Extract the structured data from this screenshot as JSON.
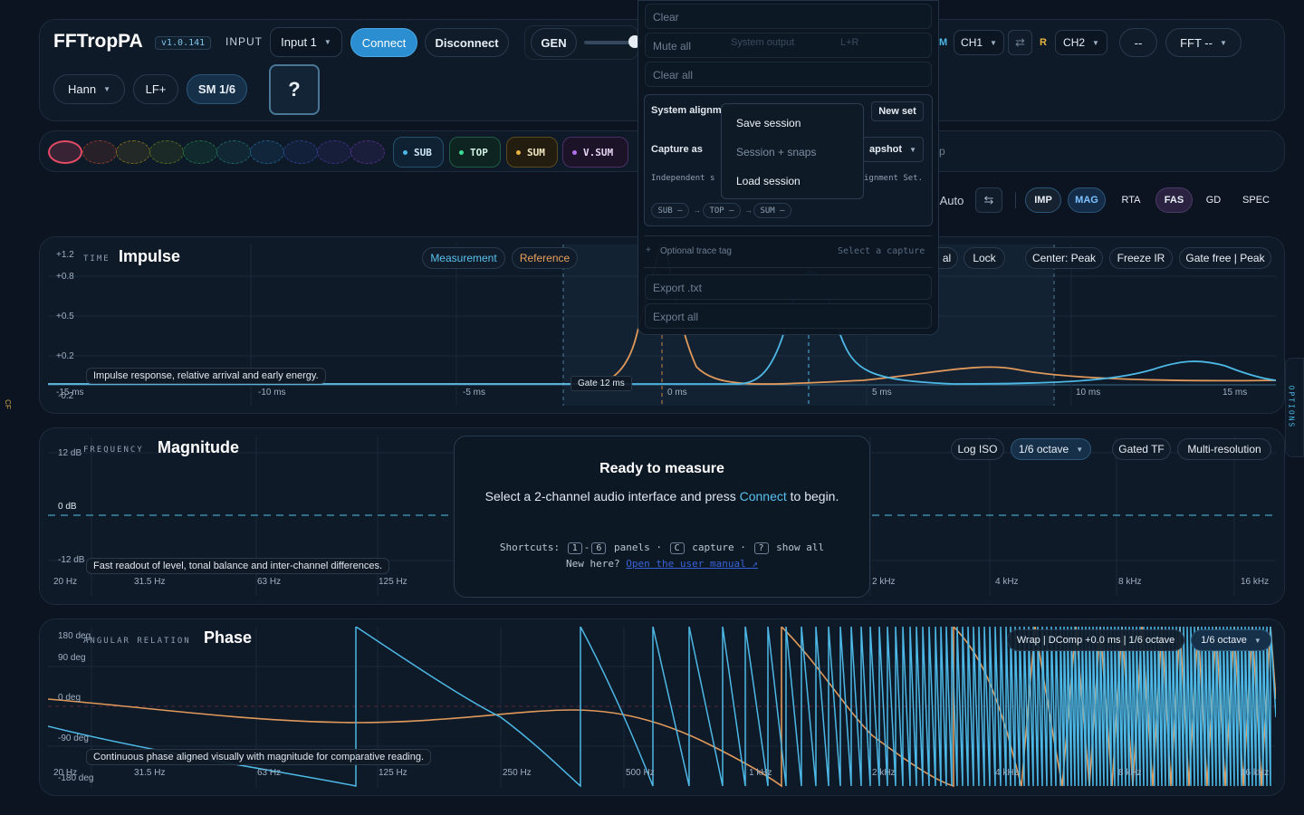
{
  "header": {
    "app_name": "FFTropPA",
    "version": "v1.0.141",
    "input_label": "INPUT",
    "input_select": "Input 1",
    "connect": "Connect",
    "disconnect": "Disconnect",
    "gen": "GEN",
    "system_output": "System output",
    "lr": "L+R",
    "m_label": "M",
    "ch1": "CH1",
    "swap_icon": "⇄",
    "r_label": "R",
    "ch2": "CH2",
    "dash": "--",
    "fft": "FFT --",
    "window": "Hann",
    "lf": "LF+",
    "smoothing": "SM 1/6",
    "help": "?"
  },
  "captures": {
    "channels": [
      {
        "label": "SUB",
        "color": "#4db8e6"
      },
      {
        "label": "TOP",
        "color": "#3ddc97"
      },
      {
        "label": "SUM",
        "color": "#e8b341"
      },
      {
        "label": "V.SUM",
        "color": "#b070e8"
      }
    ],
    "extra": "p"
  },
  "view_toolbar": {
    "auto": "Auto",
    "swap_icon": "⇆",
    "buttons": [
      "IMP",
      "MAG",
      "RTA",
      "FAS",
      "GD",
      "SPEC"
    ]
  },
  "impulse": {
    "caption": "TIME",
    "title": "Impulse",
    "y_ticks": [
      "+1.2",
      "+0.8",
      "+0.5",
      "+0.2",
      "-0.2"
    ],
    "x_ticks": [
      "-15 ms",
      "-10 ms",
      "-5 ms",
      "0 ms",
      "5 ms",
      "10 ms",
      "15 ms"
    ],
    "measurement": "Measurement",
    "reference": "Reference",
    "tools": [
      "al",
      "Lock",
      "Center: Peak",
      "Freeze IR",
      "Gate free | Peak"
    ],
    "gate": "Gate 12 ms",
    "note": "Impulse response, relative arrival and early energy."
  },
  "magnitude": {
    "caption": "FREQUENCY",
    "title": "Magnitude",
    "y_ticks": [
      "12 dB",
      "0 dB",
      "-12 dB"
    ],
    "x_ticks_left": [
      "20 Hz",
      "31.5 Hz",
      "63 Hz",
      "125 Hz"
    ],
    "x_ticks_right": [
      "2 kHz",
      "4 kHz",
      "8 kHz",
      "16 kHz"
    ],
    "log_iso": "Log ISO",
    "octave": "1/6 octave",
    "gated_tf": "Gated TF",
    "multi_res": "Multi-resolution",
    "note": "Fast readout of level, tonal balance and inter-channel differences."
  },
  "ready": {
    "title": "Ready to measure",
    "text_before": "Select a 2-channel audio interface and press ",
    "text_link": "Connect",
    "text_after": " to begin.",
    "shortcuts_label": "Shortcuts:",
    "k1": "1",
    "k_dash": "-",
    "k6": "6",
    "panels": "panels ·",
    "kc": "C",
    "capture": "capture ·",
    "kq": "?",
    "show_all": "show all",
    "new_here": "New here?",
    "manual_link": "Open the user manual ↗"
  },
  "phase": {
    "caption": "ANGULAR RELATION",
    "title": "Phase",
    "y_ticks": [
      "180 deg",
      "90 deg",
      "0 deg",
      "-90 deg",
      "-180 deg"
    ],
    "x_ticks": [
      "20 Hz",
      "31.5 Hz",
      "63 Hz",
      "125 Hz",
      "250 Hz",
      "500 Hz",
      "1 kHz",
      "2 kHz",
      "4 kHz",
      "8 kHz",
      "16 kHz"
    ],
    "wrap": "Wrap | DComp +0.0 ms | 1/6 octave",
    "octave": "1/6 octave",
    "note": "Continuous phase aligned visually with magnitude for comparative reading."
  },
  "menu": {
    "clear": "Clear",
    "mute_all": "Mute all",
    "clear_all": "Clear all",
    "system_alignment": "System alignme",
    "new_set": "New set",
    "capture_as": "Capture as",
    "snapshot": "apshot",
    "independent": "Independent s",
    "alignment_set": "ignment Set.",
    "chain": [
      "SUB –",
      "TOP –",
      "SUM –"
    ],
    "optional_tag": "Optional trace tag",
    "select_capture": "Select a capture",
    "export_txt": "Export .txt",
    "export_all": "Export all",
    "submenu": [
      "Save session",
      "Session + snaps",
      "Load session"
    ]
  },
  "side": {
    "left_tab": "CF",
    "right_tab": "OPTIONS"
  }
}
